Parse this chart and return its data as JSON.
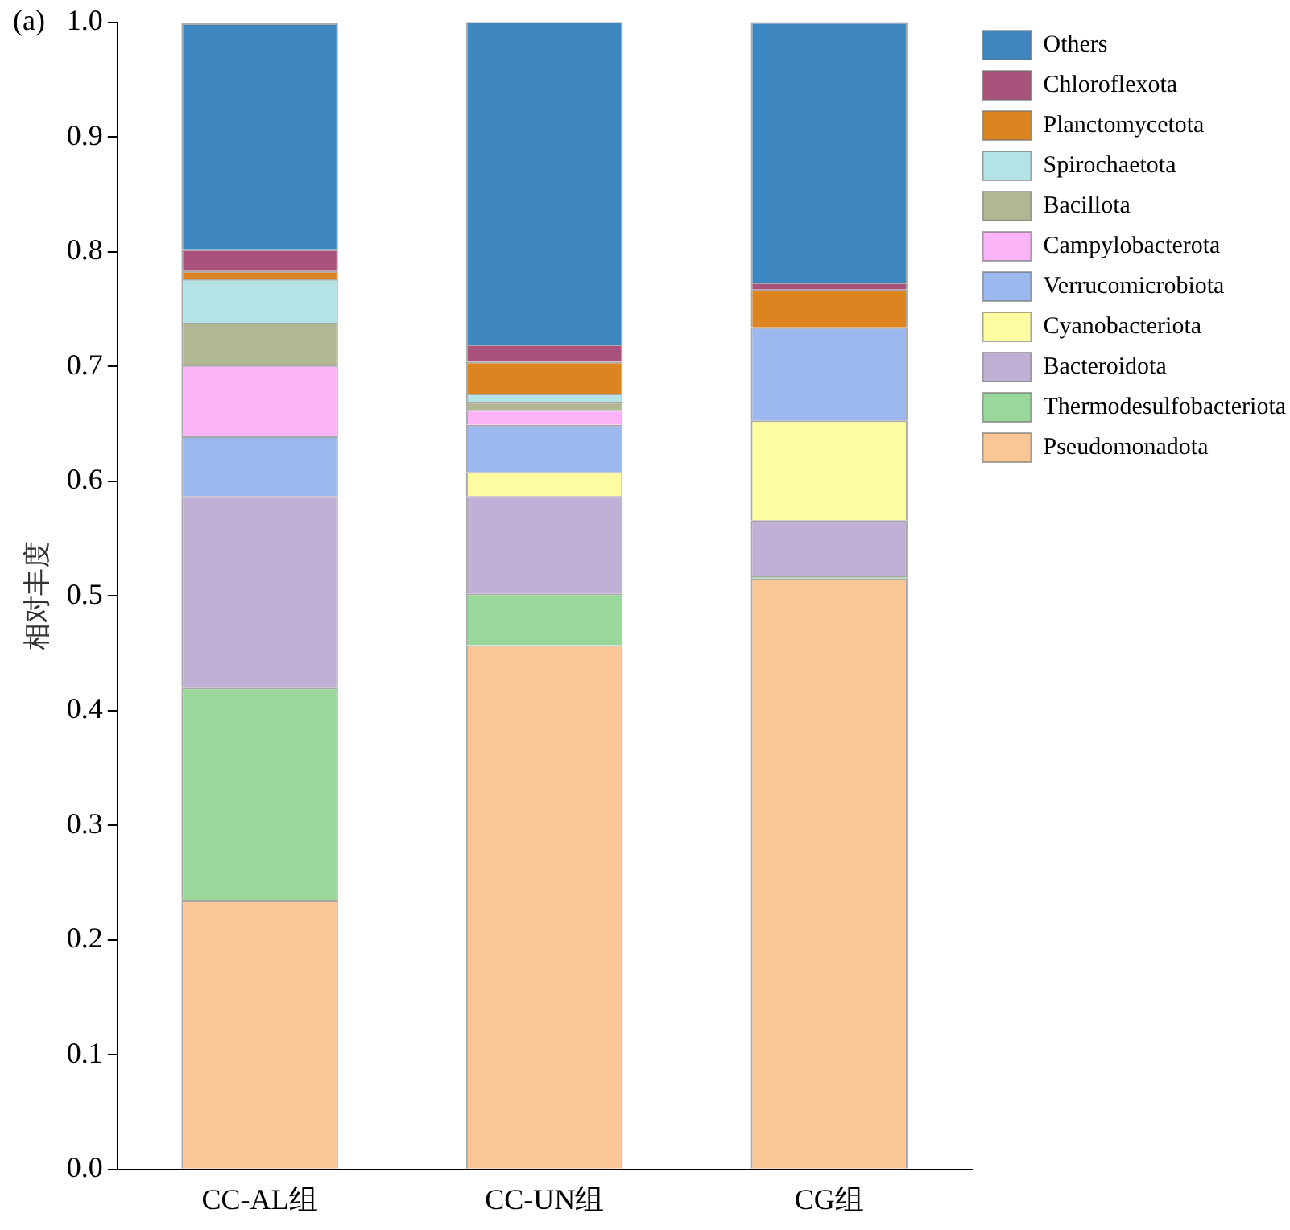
{
  "chart_data": {
    "type": "bar",
    "title": "(a)",
    "ylabel": "相对丰度",
    "categories": [
      "CC-AL组",
      "CC-UN组",
      "CG组"
    ],
    "stacked": true,
    "ylim": [
      0,
      1.0
    ],
    "yticks": [
      {
        "value": 0,
        "label": "0.0"
      },
      {
        "value": 0.1,
        "label": "0.1"
      },
      {
        "value": 0.2,
        "label": "0.2"
      },
      {
        "value": 0.3,
        "label": "0.3"
      },
      {
        "value": 0.4,
        "label": "0.4"
      },
      {
        "value": 0.5,
        "label": "0.5"
      },
      {
        "value": 0.6,
        "label": "0.6"
      },
      {
        "value": 0.7,
        "label": "0.7"
      },
      {
        "value": 0.8,
        "label": "0.8"
      },
      {
        "value": 0.9,
        "label": "0.9"
      },
      {
        "value": 1.0,
        "label": "1.0"
      }
    ],
    "grid": false,
    "legend": "right",
    "series": [
      {
        "name": "Pseudomonadota",
        "color": "#f9c695",
        "values": [
          0.235,
          0.457,
          0.515
        ]
      },
      {
        "name": "Thermodesulfobacteriota",
        "color": "#9ad79a",
        "values": [
          0.185,
          0.045,
          0.002
        ]
      },
      {
        "name": "Bacteroidota",
        "color": "#c0b0d6",
        "values": [
          0.167,
          0.085,
          0.049
        ]
      },
      {
        "name": "Cyanobacteriota",
        "color": "#fdfca0",
        "values": [
          0,
          0.021,
          0.087
        ]
      },
      {
        "name": "Verrucomicrobiota",
        "color": "#9bb9ef",
        "values": [
          0.052,
          0.041,
          0.081
        ]
      },
      {
        "name": "Campylobacterota",
        "color": "#fbb4f7",
        "values": [
          0.062,
          0.013,
          0
        ]
      },
      {
        "name": "Bacillota",
        "color": "#b2b692",
        "values": [
          0.037,
          0.007,
          0
        ]
      },
      {
        "name": "Spirochaetota",
        "color": "#b4e3e6",
        "values": [
          0.038,
          0.007,
          0
        ]
      },
      {
        "name": "Planctomycetota",
        "color": "#dc8420",
        "values": [
          0.007,
          0.028,
          0.033
        ]
      },
      {
        "name": "Chloroflexota",
        "color": "#a9527c",
        "values": [
          0.019,
          0.015,
          0.006
        ]
      },
      {
        "name": "Others",
        "color": "#3e86bf",
        "values": [
          0.197,
          0.282,
          0.227
        ]
      }
    ]
  }
}
